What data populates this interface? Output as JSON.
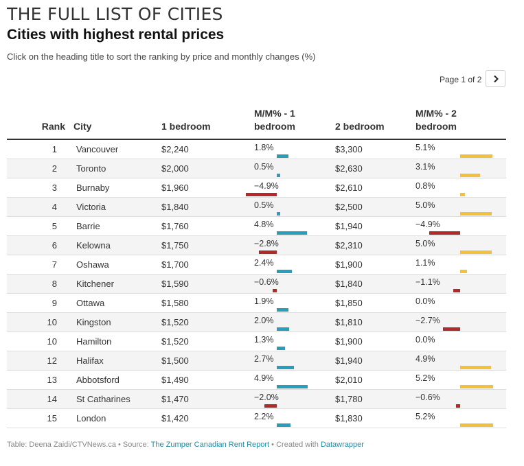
{
  "header": {
    "kicker": "THE FULL LIST OF CITIES",
    "title": "Cities with highest rental prices",
    "description": "Click on the heading title to sort the ranking by price and monthly changes (%)"
  },
  "pagination": {
    "label": "Page 1 of 2",
    "next_icon": "chevron-right-icon"
  },
  "columns": {
    "rank": "Rank",
    "city": "City",
    "one_bed": "1 bedroom",
    "mm1_line1": "M/M% - 1",
    "mm1_line2": "bedroom",
    "two_bed": "2 bedroom",
    "mm2_line1": "M/M% - 2",
    "mm2_line2": "bedroom"
  },
  "colors": {
    "mm1_positive": "#2a9dba",
    "negative": "#b02a2a",
    "mm2_positive": "#f0c040"
  },
  "rows": [
    {
      "rank": "1",
      "city": "Vancouver",
      "one_bed": "$2,240",
      "mm1": "1.8%",
      "mm1_value": 1.8,
      "two_bed": "$3,300",
      "mm2": "5.1%",
      "mm2_value": 5.1
    },
    {
      "rank": "2",
      "city": "Toronto",
      "one_bed": "$2,000",
      "mm1": "0.5%",
      "mm1_value": 0.5,
      "two_bed": "$2,630",
      "mm2": "3.1%",
      "mm2_value": 3.1
    },
    {
      "rank": "3",
      "city": "Burnaby",
      "one_bed": "$1,960",
      "mm1": "−4.9%",
      "mm1_value": -4.9,
      "two_bed": "$2,610",
      "mm2": "0.8%",
      "mm2_value": 0.8
    },
    {
      "rank": "4",
      "city": "Victoria",
      "one_bed": "$1,840",
      "mm1": "0.5%",
      "mm1_value": 0.5,
      "two_bed": "$2,500",
      "mm2": "5.0%",
      "mm2_value": 5.0
    },
    {
      "rank": "5",
      "city": "Barrie",
      "one_bed": "$1,760",
      "mm1": "4.8%",
      "mm1_value": 4.8,
      "two_bed": "$1,940",
      "mm2": "−4.9%",
      "mm2_value": -4.9
    },
    {
      "rank": "6",
      "city": "Kelowna",
      "one_bed": "$1,750",
      "mm1": "−2.8%",
      "mm1_value": -2.8,
      "two_bed": "$2,310",
      "mm2": "5.0%",
      "mm2_value": 5.0
    },
    {
      "rank": "7",
      "city": "Oshawa",
      "one_bed": "$1,700",
      "mm1": "2.4%",
      "mm1_value": 2.4,
      "two_bed": "$1,900",
      "mm2": "1.1%",
      "mm2_value": 1.1
    },
    {
      "rank": "8",
      "city": "Kitchener",
      "one_bed": "$1,590",
      "mm1": "−0.6%",
      "mm1_value": -0.6,
      "two_bed": "$1,840",
      "mm2": "−1.1%",
      "mm2_value": -1.1
    },
    {
      "rank": "9",
      "city": "Ottawa",
      "one_bed": "$1,580",
      "mm1": "1.9%",
      "mm1_value": 1.9,
      "two_bed": "$1,850",
      "mm2": "0.0%",
      "mm2_value": 0.0
    },
    {
      "rank": "10",
      "city": "Kingston",
      "one_bed": "$1,520",
      "mm1": "2.0%",
      "mm1_value": 2.0,
      "two_bed": "$1,810",
      "mm2": "−2.7%",
      "mm2_value": -2.7
    },
    {
      "rank": "10",
      "city": "Hamilton",
      "one_bed": "$1,520",
      "mm1": "1.3%",
      "mm1_value": 1.3,
      "two_bed": "$1,900",
      "mm2": "0.0%",
      "mm2_value": 0.0
    },
    {
      "rank": "12",
      "city": "Halifax",
      "one_bed": "$1,500",
      "mm1": "2.7%",
      "mm1_value": 2.7,
      "two_bed": "$1,940",
      "mm2": "4.9%",
      "mm2_value": 4.9
    },
    {
      "rank": "13",
      "city": "Abbotsford",
      "one_bed": "$1,490",
      "mm1": "4.9%",
      "mm1_value": 4.9,
      "two_bed": "$2,010",
      "mm2": "5.2%",
      "mm2_value": 5.2
    },
    {
      "rank": "14",
      "city": "St Catharines",
      "one_bed": "$1,470",
      "mm1": "−2.0%",
      "mm1_value": -2.0,
      "two_bed": "$1,780",
      "mm2": "−0.6%",
      "mm2_value": -0.6
    },
    {
      "rank": "15",
      "city": "London",
      "one_bed": "$1,420",
      "mm1": "2.2%",
      "mm1_value": 2.2,
      "two_bed": "$1,830",
      "mm2": "5.2%",
      "mm2_value": 5.2
    }
  ],
  "footer": {
    "prefix": "Table: Deena Zaidi/CTVNews.ca • Source: ",
    "source_link": "The Zumper Canadian Rent Report",
    "middle": " • Created with ",
    "tool_link": "Datawrapper"
  }
}
